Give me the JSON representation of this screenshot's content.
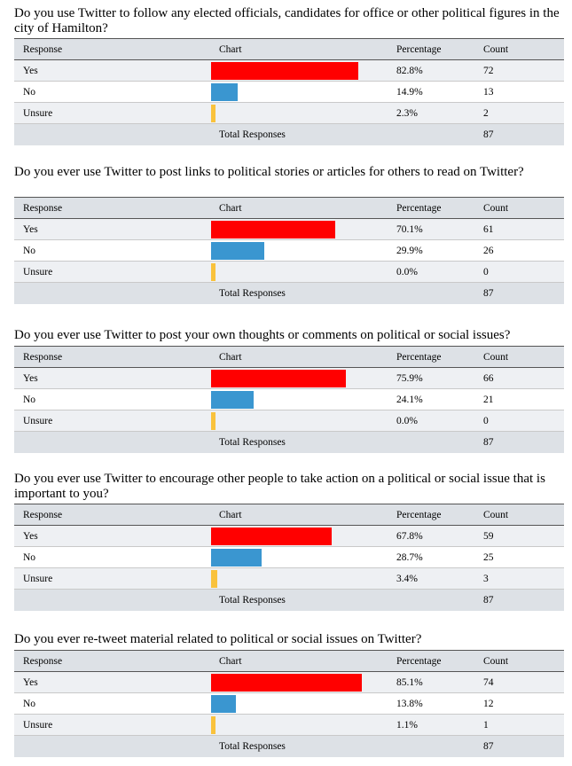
{
  "table_headers": {
    "response": "Response",
    "chart": "Chart",
    "percentage": "Percentage",
    "count": "Count"
  },
  "total_label": "Total Responses",
  "colors": {
    "Yes": "#ff0000",
    "No": "#3a96d0",
    "Unsure": "#f9c23c"
  },
  "chart_data": [
    {
      "type": "bar",
      "title": "Do you use Twitter to follow any elected officials, candidates for office or other political figures in the city of Hamilton?",
      "categories": [
        "Yes",
        "No",
        "Unsure"
      ],
      "percentages": [
        "82.8%",
        "14.9%",
        "2.3%"
      ],
      "values": [
        82.8,
        14.9,
        2.3
      ],
      "counts": [
        72,
        13,
        2
      ],
      "total": 87
    },
    {
      "type": "bar",
      "title": "Do you ever use Twitter to post links to political stories or articles for others to read on Twitter?",
      "categories": [
        "Yes",
        "No",
        "Unsure"
      ],
      "percentages": [
        "70.1%",
        "29.9%",
        "0.0%"
      ],
      "values": [
        70.1,
        29.9,
        0.0
      ],
      "counts": [
        61,
        26,
        0
      ],
      "total": 87
    },
    {
      "type": "bar",
      "title": "Do you ever use Twitter to post your own thoughts or comments on political or social issues?",
      "categories": [
        "Yes",
        "No",
        "Unsure"
      ],
      "percentages": [
        "75.9%",
        "24.1%",
        "0.0%"
      ],
      "values": [
        75.9,
        24.1,
        0.0
      ],
      "counts": [
        66,
        21,
        0
      ],
      "total": 87
    },
    {
      "type": "bar",
      "title": "Do you ever use Twitter to encourage other people to take action on a political or social issue that is important to you?",
      "categories": [
        "Yes",
        "No",
        "Unsure"
      ],
      "percentages": [
        "67.8%",
        "28.7%",
        "3.4%"
      ],
      "values": [
        67.8,
        28.7,
        3.4
      ],
      "counts": [
        59,
        25,
        3
      ],
      "total": 87
    },
    {
      "type": "bar",
      "title": "Do you ever re-tweet material related to political or social issues on Twitter?",
      "categories": [
        "Yes",
        "No",
        "Unsure"
      ],
      "percentages": [
        "85.1%",
        "13.8%",
        "1.1%"
      ],
      "values": [
        85.1,
        13.8,
        1.1
      ],
      "counts": [
        74,
        12,
        1
      ],
      "total": 87
    }
  ]
}
